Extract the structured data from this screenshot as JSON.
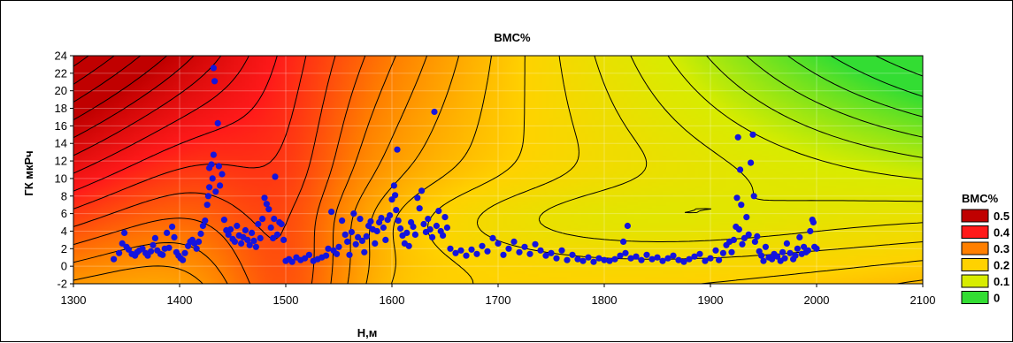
{
  "chart_data": {
    "type": "contour",
    "title": "ВМС%",
    "xlabel": "Н,м",
    "ylabel": "ГК  мкРч",
    "xlim": [
      1300,
      2100
    ],
    "ylim": [
      -2,
      24
    ],
    "x_ticks": [
      1300,
      1400,
      1500,
      1600,
      1700,
      1800,
      1900,
      2000,
      2100
    ],
    "y_ticks": [
      -2,
      0,
      2,
      4,
      6,
      8,
      10,
      12,
      14,
      16,
      18,
      20,
      22,
      24
    ],
    "grid": true,
    "legend": {
      "title": "ВМС%",
      "placement": "right",
      "entries": [
        {
          "label": "0.5",
          "color": "#c00000"
        },
        {
          "label": "0.4",
          "color": "#ff1a1a"
        },
        {
          "label": "0.3",
          "color": "#ff7f00"
        },
        {
          "label": "0.2",
          "color": "#ffd200"
        },
        {
          "label": "0.1",
          "color": "#d8ec00"
        },
        {
          "label": "0",
          "color": "#33dd33"
        }
      ]
    },
    "colors": {
      "points": "#1414dd",
      "contour_lines": "#000000"
    },
    "points": [
      [
        1338,
        0.8
      ],
      [
        1343,
        1.5
      ],
      [
        1346,
        2.6
      ],
      [
        1348,
        3.8
      ],
      [
        1350,
        2.2
      ],
      [
        1352,
        1.9
      ],
      [
        1355,
        1.4
      ],
      [
        1358,
        1.2
      ],
      [
        1360,
        1.6
      ],
      [
        1362,
        1.8
      ],
      [
        1365,
        2.0
      ],
      [
        1368,
        1.5
      ],
      [
        1370,
        1.2
      ],
      [
        1373,
        1.7
      ],
      [
        1375,
        2.4
      ],
      [
        1377,
        3.2
      ],
      [
        1379,
        1.8
      ],
      [
        1382,
        1.4
      ],
      [
        1384,
        1.3
      ],
      [
        1386,
        2.0
      ],
      [
        1388,
        3.8
      ],
      [
        1390,
        2.1
      ],
      [
        1393,
        4.5
      ],
      [
        1395,
        3.3
      ],
      [
        1397,
        1.6
      ],
      [
        1399,
        1.2
      ],
      [
        1401,
        0.9
      ],
      [
        1403,
        0.7
      ],
      [
        1405,
        1.5
      ],
      [
        1408,
        2.3
      ],
      [
        1410,
        2.8
      ],
      [
        1412,
        3.0
      ],
      [
        1414,
        2.6
      ],
      [
        1416,
        2.0
      ],
      [
        1418,
        2.8
      ],
      [
        1420,
        3.7
      ],
      [
        1422,
        4.6
      ],
      [
        1424,
        5.2
      ],
      [
        1426,
        7.0
      ],
      [
        1427,
        8.0
      ],
      [
        1428,
        9.0
      ],
      [
        1428,
        11.2
      ],
      [
        1430,
        11.6
      ],
      [
        1431,
        10.0
      ],
      [
        1432,
        12.7
      ],
      [
        1432,
        22.6
      ],
      [
        1433,
        21.1
      ],
      [
        1434,
        8.5
      ],
      [
        1436,
        16.3
      ],
      [
        1437,
        11.4
      ],
      [
        1438,
        9.2
      ],
      [
        1440,
        10.5
      ],
      [
        1442,
        5.3
      ],
      [
        1444,
        4.1
      ],
      [
        1446,
        3.6
      ],
      [
        1448,
        4.2
      ],
      [
        1450,
        3.1
      ],
      [
        1452,
        2.8
      ],
      [
        1454,
        4.6
      ],
      [
        1456,
        3.5
      ],
      [
        1458,
        2.6
      ],
      [
        1460,
        3.3
      ],
      [
        1462,
        4.1
      ],
      [
        1464,
        3.0
      ],
      [
        1466,
        2.4
      ],
      [
        1468,
        3.8
      ],
      [
        1470,
        2.9
      ],
      [
        1472,
        2.2
      ],
      [
        1474,
        4.8
      ],
      [
        1476,
        3.2
      ],
      [
        1478,
        5.4
      ],
      [
        1480,
        7.8
      ],
      [
        1482,
        7.1
      ],
      [
        1484,
        6.5
      ],
      [
        1486,
        4.4
      ],
      [
        1488,
        3.2
      ],
      [
        1489,
        5.4
      ],
      [
        1490,
        10.2
      ],
      [
        1492,
        3.6
      ],
      [
        1494,
        5.0
      ],
      [
        1496,
        4.8
      ],
      [
        1498,
        3.0
      ],
      [
        1500,
        0.6
      ],
      [
        1503,
        0.8
      ],
      [
        1506,
        0.5
      ],
      [
        1510,
        1.0
      ],
      [
        1514,
        0.7
      ],
      [
        1518,
        0.9
      ],
      [
        1522,
        1.3
      ],
      [
        1526,
        0.6
      ],
      [
        1530,
        0.8
      ],
      [
        1534,
        1.0
      ],
      [
        1538,
        1.2
      ],
      [
        1540,
        2.0
      ],
      [
        1543,
        6.2
      ],
      [
        1545,
        1.8
      ],
      [
        1548,
        1.4
      ],
      [
        1550,
        2.2
      ],
      [
        1553,
        5.2
      ],
      [
        1556,
        3.6
      ],
      [
        1558,
        2.8
      ],
      [
        1560,
        1.3
      ],
      [
        1562,
        3.9
      ],
      [
        1564,
        6.0
      ],
      [
        1566,
        2.5
      ],
      [
        1568,
        3.3
      ],
      [
        1570,
        5.4
      ],
      [
        1572,
        2.9
      ],
      [
        1574,
        1.6
      ],
      [
        1576,
        3.4
      ],
      [
        1578,
        4.6
      ],
      [
        1580,
        5.1
      ],
      [
        1582,
        4.2
      ],
      [
        1584,
        2.6
      ],
      [
        1586,
        4.0
      ],
      [
        1588,
        5.0
      ],
      [
        1590,
        5.5
      ],
      [
        1592,
        4.4
      ],
      [
        1594,
        3.0
      ],
      [
        1596,
        5.3
      ],
      [
        1598,
        5.8
      ],
      [
        1600,
        7.6
      ],
      [
        1602,
        9.2
      ],
      [
        1603,
        8.1
      ],
      [
        1604,
        6.4
      ],
      [
        1605,
        13.3
      ],
      [
        1606,
        5.2
      ],
      [
        1608,
        4.3
      ],
      [
        1610,
        3.5
      ],
      [
        1612,
        2.6
      ],
      [
        1614,
        3.8
      ],
      [
        1616,
        2.3
      ],
      [
        1618,
        5.0
      ],
      [
        1620,
        4.5
      ],
      [
        1622,
        3.6
      ],
      [
        1624,
        7.8
      ],
      [
        1626,
        6.6
      ],
      [
        1628,
        8.6
      ],
      [
        1630,
        4.8
      ],
      [
        1632,
        3.9
      ],
      [
        1634,
        5.4
      ],
      [
        1636,
        4.2
      ],
      [
        1638,
        3.3
      ],
      [
        1640,
        17.6
      ],
      [
        1642,
        4.6
      ],
      [
        1644,
        6.3
      ],
      [
        1646,
        4.0
      ],
      [
        1648,
        3.5
      ],
      [
        1650,
        5.6
      ],
      [
        1652,
        4.4
      ],
      [
        1655,
        2.0
      ],
      [
        1660,
        1.5
      ],
      [
        1665,
        1.8
      ],
      [
        1670,
        1.2
      ],
      [
        1675,
        1.9
      ],
      [
        1680,
        1.4
      ],
      [
        1685,
        2.3
      ],
      [
        1690,
        1.7
      ],
      [
        1695,
        3.2
      ],
      [
        1700,
        2.6
      ],
      [
        1705,
        1.3
      ],
      [
        1710,
        2.0
      ],
      [
        1715,
        2.8
      ],
      [
        1720,
        1.6
      ],
      [
        1725,
        2.2
      ],
      [
        1730,
        1.4
      ],
      [
        1735,
        2.5
      ],
      [
        1740,
        1.8
      ],
      [
        1745,
        1.2
      ],
      [
        1750,
        1.5
      ],
      [
        1755,
        0.9
      ],
      [
        1760,
        1.8
      ],
      [
        1765,
        0.7
      ],
      [
        1770,
        1.3
      ],
      [
        1775,
        0.8
      ],
      [
        1780,
        0.6
      ],
      [
        1785,
        1.0
      ],
      [
        1790,
        0.5
      ],
      [
        1795,
        0.9
      ],
      [
        1800,
        0.7
      ],
      [
        1805,
        0.6
      ],
      [
        1810,
        0.8
      ],
      [
        1815,
        1.2
      ],
      [
        1818,
        2.8
      ],
      [
        1820,
        1.5
      ],
      [
        1822,
        4.6
      ],
      [
        1825,
        0.9
      ],
      [
        1830,
        1.1
      ],
      [
        1835,
        0.7
      ],
      [
        1840,
        1.3
      ],
      [
        1845,
        0.8
      ],
      [
        1850,
        1.0
      ],
      [
        1855,
        0.6
      ],
      [
        1860,
        0.9
      ],
      [
        1865,
        1.2
      ],
      [
        1870,
        0.7
      ],
      [
        1875,
        0.5
      ],
      [
        1880,
        0.8
      ],
      [
        1885,
        1.1
      ],
      [
        1890,
        1.4
      ],
      [
        1895,
        0.6
      ],
      [
        1900,
        0.9
      ],
      [
        1905,
        1.8
      ],
      [
        1908,
        0.7
      ],
      [
        1912,
        1.5
      ],
      [
        1915,
        2.4
      ],
      [
        1918,
        2.8
      ],
      [
        1920,
        1.6
      ],
      [
        1922,
        3.0
      ],
      [
        1924,
        4.5
      ],
      [
        1925,
        7.8
      ],
      [
        1926,
        14.7
      ],
      [
        1927,
        4.2
      ],
      [
        1928,
        11.0
      ],
      [
        1929,
        7.0
      ],
      [
        1930,
        2.5
      ],
      [
        1932,
        3.2
      ],
      [
        1934,
        5.6
      ],
      [
        1936,
        3.6
      ],
      [
        1938,
        11.8
      ],
      [
        1940,
        15.0
      ],
      [
        1941,
        8.0
      ],
      [
        1942,
        2.8
      ],
      [
        1944,
        3.4
      ],
      [
        1946,
        1.7
      ],
      [
        1948,
        1.2
      ],
      [
        1950,
        0.6
      ],
      [
        1952,
        2.2
      ],
      [
        1955,
        1.0
      ],
      [
        1958,
        0.8
      ],
      [
        1960,
        1.4
      ],
      [
        1963,
        1.1
      ],
      [
        1966,
        0.6
      ],
      [
        1968,
        1.6
      ],
      [
        1970,
        0.9
      ],
      [
        1972,
        2.6
      ],
      [
        1975,
        1.5
      ],
      [
        1978,
        0.8
      ],
      [
        1980,
        1.2
      ],
      [
        1982,
        2.0
      ],
      [
        1984,
        3.3
      ],
      [
        1986,
        1.4
      ],
      [
        1988,
        2.2
      ],
      [
        1990,
        1.6
      ],
      [
        1992,
        1.8
      ],
      [
        1994,
        4.0
      ],
      [
        1996,
        5.3
      ],
      [
        1997,
        5.0
      ],
      [
        1998,
        2.2
      ],
      [
        2000,
        2.0
      ]
    ]
  }
}
